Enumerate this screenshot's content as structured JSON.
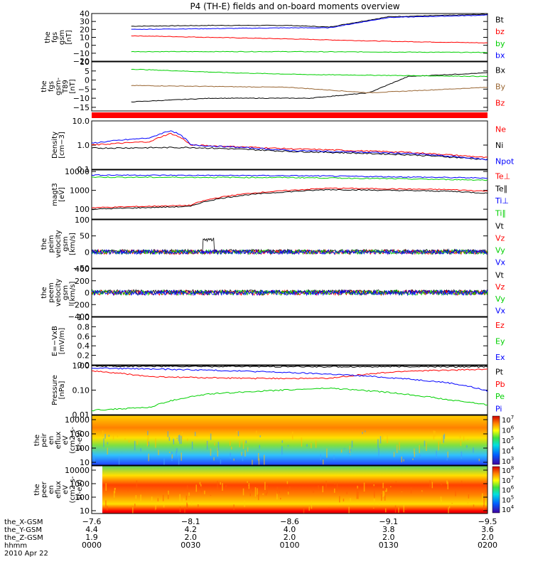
{
  "title": "P4 (TH-E) fields and on-board moments overview",
  "colors": {
    "black": "#000000",
    "red": "#ff0000",
    "green": "#00d000",
    "blue": "#0000ff",
    "brown": "#996633"
  },
  "chart_data": [
    {
      "type": "line",
      "id": "p1",
      "ylabel": [
        "the",
        "fgs",
        "gsm",
        "[nT]"
      ],
      "ylim": [
        -20,
        40
      ],
      "yticks": [
        "−20",
        "−10",
        "0",
        "10",
        "20",
        "30",
        "40"
      ],
      "legend": [
        "Bt",
        "bz",
        "by",
        "bx"
      ],
      "series": [
        {
          "name": "Bt",
          "color": "black",
          "x": [
            0.1,
            0.3,
            0.5,
            0.6,
            0.75,
            1.0
          ],
          "y": [
            24,
            25,
            25,
            23,
            36,
            39
          ]
        },
        {
          "name": "bz",
          "color": "red",
          "x": [
            0.1,
            0.5,
            0.75,
            1.0
          ],
          "y": [
            12,
            8,
            5,
            3
          ]
        },
        {
          "name": "by",
          "color": "green",
          "x": [
            0.1,
            0.5,
            1.0
          ],
          "y": [
            -8,
            -8,
            -9
          ]
        },
        {
          "name": "bx",
          "color": "blue",
          "x": [
            0.1,
            0.3,
            0.5,
            0.6,
            0.75,
            1.0
          ],
          "y": [
            20,
            21,
            22,
            22,
            35,
            38
          ]
        }
      ]
    },
    {
      "type": "line",
      "id": "p2",
      "ylabel": [
        "the",
        "fgs",
        "gsm-",
        "T89",
        "[nT]"
      ],
      "ylim": [
        -17,
        10
      ],
      "yticks": [
        "−15",
        "−10",
        "−5",
        "0",
        "5",
        "10"
      ],
      "legend": [
        "Bx",
        "By",
        "Bz"
      ],
      "series": [
        {
          "name": "Bx",
          "color": "black",
          "x": [
            0.1,
            0.3,
            0.55,
            0.7,
            0.8,
            1.0
          ],
          "y": [
            -12,
            -10,
            -10,
            -7,
            2,
            4
          ]
        },
        {
          "name": "By",
          "color": "brown",
          "x": [
            0.1,
            0.5,
            0.7,
            1.0
          ],
          "y": [
            -3,
            -4,
            -7,
            -4
          ]
        },
        {
          "name": "Bz",
          "color": "green",
          "x": [
            0.1,
            0.35,
            0.55,
            1.0
          ],
          "y": [
            6,
            4,
            3,
            2
          ]
        }
      ]
    },
    {
      "type": "line",
      "id": "p4",
      "ylabel": [
        "Density",
        "[cm−3]"
      ],
      "ylog": true,
      "ylim": [
        0.1,
        10
      ],
      "yticks": [
        "0.1",
        "1.0",
        "10.0"
      ],
      "legend": [
        "Ne",
        "Ni",
        "Npot"
      ],
      "series": [
        {
          "name": "Ne",
          "color": "red",
          "x": [
            0.0,
            0.15,
            0.2,
            0.25,
            0.5,
            0.8,
            1.0
          ],
          "y": [
            1.0,
            1.4,
            3.0,
            1.0,
            0.7,
            0.5,
            0.3
          ]
        },
        {
          "name": "Ni",
          "color": "black",
          "x": [
            0.0,
            0.25,
            0.5,
            0.8,
            1.0
          ],
          "y": [
            0.75,
            0.8,
            0.55,
            0.4,
            0.25
          ]
        },
        {
          "name": "Npot",
          "color": "blue",
          "x": [
            0.0,
            0.15,
            0.2,
            0.25,
            0.5,
            0.8,
            1.0
          ],
          "y": [
            1.2,
            2.0,
            4.0,
            1.0,
            0.6,
            0.45,
            0.25
          ]
        }
      ]
    },
    {
      "type": "line",
      "id": "p5",
      "ylabel": [
        "magt3",
        "[eV]"
      ],
      "ylog": true,
      "ylim": [
        30,
        12000
      ],
      "yticks": [
        "100",
        "1000",
        "10000"
      ],
      "legend": [
        "Te⊥",
        "Te∥",
        "Ti⊥",
        "Ti∥"
      ],
      "series": [
        {
          "name": "Te⊥",
          "color": "red",
          "x": [
            0.0,
            0.25,
            0.4,
            0.6,
            0.9,
            1.0
          ],
          "y": [
            120,
            160,
            700,
            1300,
            1100,
            900
          ]
        },
        {
          "name": "Te∥",
          "color": "black",
          "x": [
            0.0,
            0.25,
            0.4,
            0.6,
            0.9,
            1.0
          ],
          "y": [
            100,
            140,
            600,
            1100,
            900,
            700
          ]
        },
        {
          "name": "Ti⊥",
          "color": "blue",
          "x": [
            0.0,
            0.5,
            1.0
          ],
          "y": [
            6500,
            6000,
            4500
          ]
        },
        {
          "name": "Ti∥",
          "color": "green",
          "x": [
            0.0,
            0.5,
            1.0
          ],
          "y": [
            5000,
            4800,
            3500
          ]
        }
      ]
    },
    {
      "type": "line",
      "id": "p6",
      "ylabel": [
        "the",
        "peim",
        "velocity",
        "gsm",
        "[km/s]"
      ],
      "ylim": [
        -50,
        100
      ],
      "yticks": [
        "−50",
        "0",
        "50",
        "100"
      ],
      "legend": [
        "Vt",
        "Vz",
        "Vy",
        "Vx"
      ]
    },
    {
      "type": "line",
      "id": "p7",
      "ylabel": [
        "the",
        "peem",
        "velocity",
        "gsm",
        "[km/s]"
      ],
      "ylim": [
        -400,
        400
      ],
      "yticks": [
        "−400",
        "−200",
        "0",
        "200",
        "400"
      ],
      "legend": [
        "Vt",
        "Vz",
        "Vy",
        "Vx"
      ]
    },
    {
      "type": "line",
      "id": "p8",
      "ylabel": [
        "E=−VxB",
        "[mV/m]"
      ],
      "ylim": [
        0,
        1
      ],
      "yticks": [
        "0.0",
        "0.2",
        "0.4",
        "0.6",
        "0.8",
        "1.0"
      ],
      "legend": [
        "Ez",
        "Ey",
        "Ex"
      ]
    },
    {
      "type": "line",
      "id": "p9",
      "ylabel": [
        "Pressure",
        "[nPa]"
      ],
      "ylog": true,
      "ylim": [
        0.01,
        1
      ],
      "yticks": [
        "0.01",
        "0.10",
        "1.00"
      ],
      "legend": [
        "Pt",
        "Pb",
        "Pe",
        "Pi"
      ],
      "series": [
        {
          "name": "Pt",
          "color": "black",
          "x": [
            0.0,
            0.5,
            1.0
          ],
          "y": [
            0.95,
            0.9,
            0.9
          ]
        },
        {
          "name": "Pb",
          "color": "red",
          "x": [
            0.0,
            0.15,
            0.4,
            0.6,
            0.8,
            1.0
          ],
          "y": [
            0.6,
            0.35,
            0.3,
            0.3,
            0.6,
            0.7
          ]
        },
        {
          "name": "Pe",
          "color": "green",
          "x": [
            0.0,
            0.15,
            0.3,
            0.6,
            0.9,
            1.0
          ],
          "y": [
            0.015,
            0.02,
            0.07,
            0.12,
            0.04,
            0.025
          ]
        },
        {
          "name": "Pi",
          "color": "blue",
          "x": [
            0.0,
            0.3,
            0.6,
            0.9,
            1.0
          ],
          "y": [
            0.8,
            0.65,
            0.45,
            0.2,
            0.09
          ]
        }
      ]
    },
    {
      "type": "heatmap",
      "id": "p10",
      "ylabel": [
        "the",
        "peir",
        "en",
        "eflux",
        "eV",
        "(cm2-s-",
        "sr-eV)"
      ],
      "yticks": [
        "10",
        "100",
        "1000",
        "10000"
      ],
      "colorbar": [
        "103",
        "104",
        "105",
        "106",
        "107"
      ]
    },
    {
      "type": "heatmap",
      "id": "p11",
      "ylabel": [
        "the",
        "peer",
        "en",
        "eflux",
        "eV",
        "(cm2-s-",
        "sr-eV)"
      ],
      "yticks": [
        "10",
        "100",
        "1000",
        "10000"
      ],
      "colorbar": [
        "104",
        "105",
        "106",
        "107",
        "108"
      ]
    }
  ],
  "xaxis": {
    "rows": [
      {
        "label": "the_X-GSM",
        "values": [
          "−7.6",
          "−8.1",
          "−8.6",
          "−9.1",
          "−9.5"
        ]
      },
      {
        "label": "the_Y-GSM",
        "values": [
          "4.4",
          "4.2",
          "4.0",
          "3.8",
          "3.6"
        ]
      },
      {
        "label": "the_Z-GSM",
        "values": [
          "1.9",
          "2.0",
          "2.0",
          "2.0",
          "2.0"
        ]
      },
      {
        "label": "hhmm",
        "values": [
          "0000",
          "0030",
          "0100",
          "0130",
          "0200"
        ]
      }
    ],
    "date": "2010 Apr 22"
  }
}
